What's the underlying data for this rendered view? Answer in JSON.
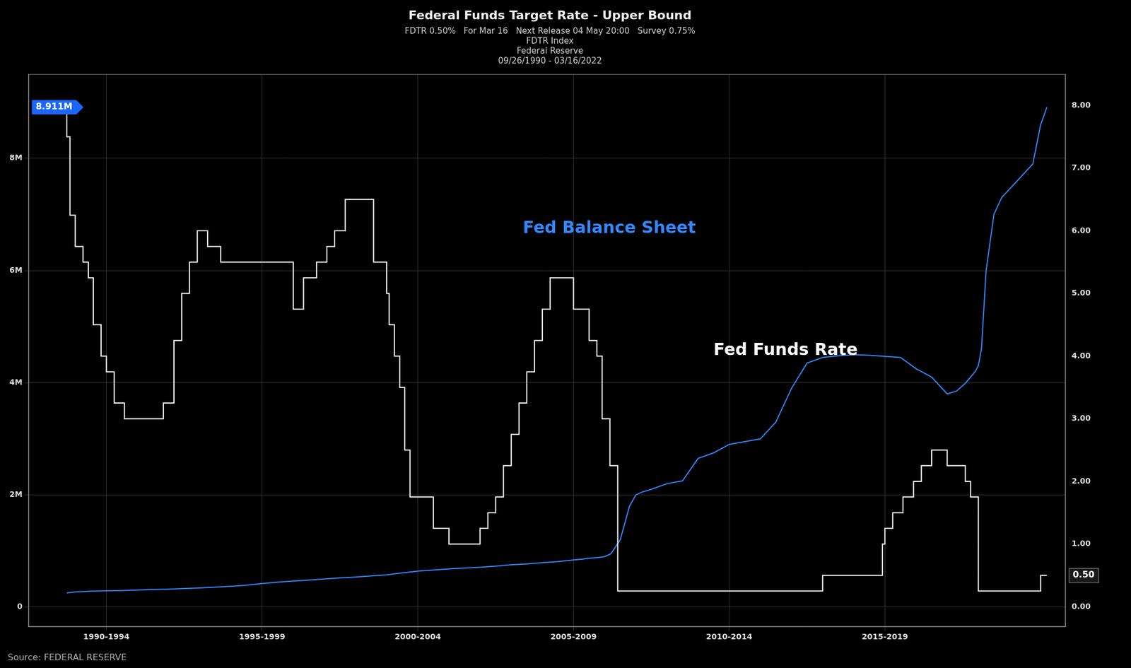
{
  "chart_data": {
    "type": "line",
    "title": "Federal Funds Target Rate - Upper Bound",
    "subtitle": [
      "FDTR 0.50%   For Mar 16   Next Release 04 May 20:00   Survey 0.75%",
      "FDTR Index",
      "Federal Reserve",
      "09/26/1990 - 03/16/2022"
    ],
    "series": [
      {
        "name": "Fed Funds Rate",
        "color": "#ffffff",
        "axis": "y2",
        "line_style": "step",
        "x": [
          1990.73,
          1990.83,
          1991.0,
          1991.25,
          1991.42,
          1991.58,
          1991.83,
          1992.0,
          1992.25,
          1992.58,
          1993.0,
          1993.5,
          1993.83,
          1994.17,
          1994.42,
          1994.67,
          1994.92,
          1995.25,
          1995.67,
          1996.08,
          1996.5,
          1997.0,
          1997.5,
          1998.0,
          1998.33,
          1998.75,
          1999.08,
          1999.33,
          1999.67,
          2000.0,
          2000.25,
          2000.58,
          2001.0,
          2001.08,
          2001.25,
          2001.42,
          2001.58,
          2001.75,
          2001.92,
          2002.5,
          2003.0,
          2003.5,
          2004.0,
          2004.25,
          2004.5,
          2004.75,
          2005.0,
          2005.25,
          2005.5,
          2005.75,
          2006.0,
          2006.25,
          2006.5,
          2006.75,
          2007.0,
          2007.5,
          2007.75,
          2007.92,
          2008.17,
          2008.42,
          2008.92,
          2009.0,
          2009.5,
          2010.0,
          2011.0,
          2012.0,
          2013.0,
          2014.0,
          2015.0,
          2015.08,
          2015.92,
          2016.0,
          2016.92,
          2017.0,
          2017.25,
          2017.58,
          2017.92,
          2018.17,
          2018.5,
          2018.83,
          2019.0,
          2019.58,
          2019.75,
          2019.92,
          2020.0,
          2020.08,
          2020.5,
          2021.0,
          2021.5,
          2022.0,
          2022.2
        ],
        "values": [
          8.0,
          7.5,
          6.25,
          5.75,
          5.5,
          5.25,
          4.5,
          4.0,
          3.75,
          3.25,
          3.0,
          3.0,
          3.0,
          3.25,
          4.25,
          5.0,
          5.5,
          6.0,
          5.75,
          5.5,
          5.5,
          5.5,
          5.5,
          5.5,
          4.75,
          5.25,
          5.5,
          5.75,
          6.0,
          6.5,
          6.5,
          6.5,
          5.5,
          5.0,
          4.5,
          4.0,
          3.5,
          2.5,
          1.75,
          1.75,
          1.25,
          1.0,
          1.0,
          1.25,
          1.5,
          1.75,
          2.25,
          2.75,
          3.25,
          3.75,
          4.25,
          4.75,
          5.25,
          5.25,
          5.25,
          4.75,
          4.25,
          4.0,
          3.0,
          2.25,
          0.25,
          0.25,
          0.25,
          0.25,
          0.25,
          0.25,
          0.25,
          0.25,
          0.25,
          0.5,
          0.5,
          0.5,
          0.5,
          1.0,
          1.25,
          1.5,
          1.75,
          2.0,
          2.25,
          2.5,
          2.5,
          2.25,
          2.0,
          1.75,
          1.75,
          0.25,
          0.25,
          0.25,
          0.25,
          0.25,
          0.5
        ]
      },
      {
        "name": "Fed Balance Sheet",
        "color": "#3388ff",
        "axis": "y",
        "x": [
          1990.73,
          1991.0,
          1991.5,
          1992.0,
          1992.5,
          1993.0,
          1993.5,
          1994.0,
          1994.5,
          1995.0,
          1995.5,
          1996.0,
          1996.5,
          1997.0,
          1997.5,
          1998.0,
          1998.5,
          1999.0,
          1999.5,
          2000.0,
          2000.5,
          2001.0,
          2001.5,
          2002.0,
          2002.5,
          2003.0,
          2003.5,
          2004.0,
          2004.5,
          2005.0,
          2005.5,
          2006.0,
          2006.5,
          2007.0,
          2007.3,
          2007.5,
          2007.8,
          2008.0,
          2008.2,
          2008.5,
          2008.8,
          2009.0,
          2009.2,
          2009.5,
          2010.0,
          2010.5,
          2011.0,
          2011.5,
          2012.0,
          2012.5,
          2013.0,
          2013.5,
          2014.0,
          2014.5,
          2015.0,
          2015.5,
          2016.0,
          2016.5,
          2017.0,
          2017.5,
          2018.0,
          2018.5,
          2019.0,
          2019.3,
          2019.6,
          2019.9,
          2020.0,
          2020.1,
          2020.25,
          2020.5,
          2020.75,
          2021.0,
          2021.25,
          2021.5,
          2021.75,
          2022.0,
          2022.1,
          2022.2
        ],
        "values": [
          253000,
          270000,
          285000,
          290000,
          295000,
          305000,
          315000,
          320000,
          330000,
          340000,
          355000,
          370000,
          390000,
          420000,
          445000,
          465000,
          480000,
          500000,
          520000,
          535000,
          555000,
          575000,
          610000,
          640000,
          660000,
          680000,
          695000,
          710000,
          730000,
          755000,
          770000,
          790000,
          810000,
          840000,
          855000,
          870000,
          885000,
          900000,
          950000,
          1200000,
          1800000,
          2000000,
          2050000,
          2100000,
          2200000,
          2250000,
          2650000,
          2750000,
          2900000,
          2950000,
          3000000,
          3300000,
          3900000,
          4350000,
          4450000,
          4480000,
          4500000,
          4490000,
          4470000,
          4450000,
          4250000,
          4100000,
          3800000,
          3850000,
          4000000,
          4200000,
          4300000,
          4600000,
          6000000,
          7000000,
          7300000,
          7450000,
          7600000,
          7750000,
          7900000,
          8600000,
          8750000,
          8911000
        ]
      }
    ],
    "xlim": [
      1989.5,
      2022.8
    ],
    "xticks": [
      {
        "value": 1992.0,
        "label": "1990-1994"
      },
      {
        "value": 1997.0,
        "label": "1995-1999"
      },
      {
        "value": 2002.0,
        "label": "2000-2004"
      },
      {
        "value": 2007.0,
        "label": "2005-2009"
      },
      {
        "value": 2012.0,
        "label": "2010-2014"
      },
      {
        "value": 2017.0,
        "label": "2015-2019"
      }
    ],
    "ylim": [
      -350000,
      9500000
    ],
    "yticks": [
      0,
      {
        "value": 2000000,
        "label": "2M"
      },
      {
        "value": 4000000,
        "label": "4M"
      },
      {
        "value": 6000000,
        "label": "6M"
      },
      {
        "value": 8000000,
        "label": "8M"
      }
    ],
    "y2lim": [
      -0.32,
      8.5
    ],
    "y2ticks": [
      {
        "value": 0.0,
        "label": "0.00"
      },
      {
        "value": 1.0,
        "label": "1.00"
      },
      {
        "value": 2.0,
        "label": "2.00"
      },
      {
        "value": 3.0,
        "label": "3.00"
      },
      {
        "value": 4.0,
        "label": "4.00"
      },
      {
        "value": 5.0,
        "label": "5.00"
      },
      {
        "value": 6.0,
        "label": "6.00"
      },
      {
        "value": 7.0,
        "label": "7.00"
      },
      {
        "value": 8.0,
        "label": "8.00"
      }
    ],
    "grid": true,
    "annotations": [
      {
        "text": "Fed Balance Sheet",
        "color": "#3388ff"
      },
      {
        "text": "Fed Funds Rate",
        "color": "#ffffff"
      },
      {
        "text": "8.911M",
        "y": 8911000,
        "axis": "y",
        "color": "#1a66ff"
      },
      {
        "text": "0.50",
        "y": 0.5,
        "axis": "y2"
      },
      {
        "text": "Source: FEDERAL RESERVE"
      }
    ]
  }
}
